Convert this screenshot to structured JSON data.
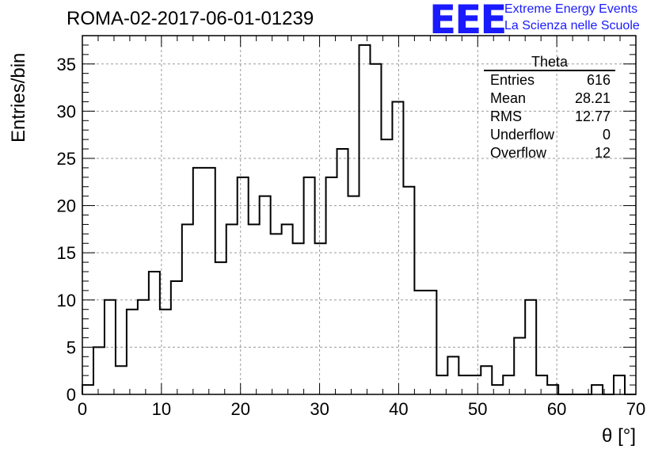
{
  "title": "ROMA-02-2017-06-01-01239",
  "logo": {
    "mark": "EEE",
    "line1": "Extreme Energy Events",
    "line2": "La Scienza nelle Scuole",
    "color": "#1a1aff"
  },
  "stats": {
    "name": "Theta",
    "rows": [
      {
        "label": "Entries",
        "value": "616"
      },
      {
        "label": "Mean",
        "value": "28.21"
      },
      {
        "label": "RMS",
        "value": "12.77"
      },
      {
        "label": "Underflow",
        "value": "0"
      },
      {
        "label": "Overflow",
        "value": "12"
      }
    ]
  },
  "chart_data": {
    "type": "bar",
    "style": "step-histogram",
    "title": "ROMA-02-2017-06-01-01239",
    "xlabel": "θ [°]",
    "ylabel": "Entries/bin",
    "xlim": [
      0,
      70
    ],
    "ylim": [
      0,
      38
    ],
    "bin_width": 1.4,
    "bin_edges_start": 0,
    "values": [
      1,
      5,
      10,
      3,
      9,
      10,
      13,
      9,
      12,
      18,
      24,
      24,
      14,
      18,
      23,
      18,
      21,
      17,
      18,
      16,
      23,
      16,
      23,
      26,
      21,
      37,
      35,
      27,
      31,
      22,
      11,
      11,
      2,
      4,
      2,
      2,
      3,
      1,
      2,
      6,
      10,
      2,
      1,
      0,
      0,
      0,
      1,
      0,
      2,
      0
    ],
    "x_ticks": [
      "0",
      "10",
      "20",
      "30",
      "40",
      "50",
      "60",
      "70"
    ],
    "y_ticks": [
      "0",
      "5",
      "10",
      "15",
      "20",
      "25",
      "30",
      "35"
    ],
    "grid": true,
    "line_color": "#000000"
  }
}
